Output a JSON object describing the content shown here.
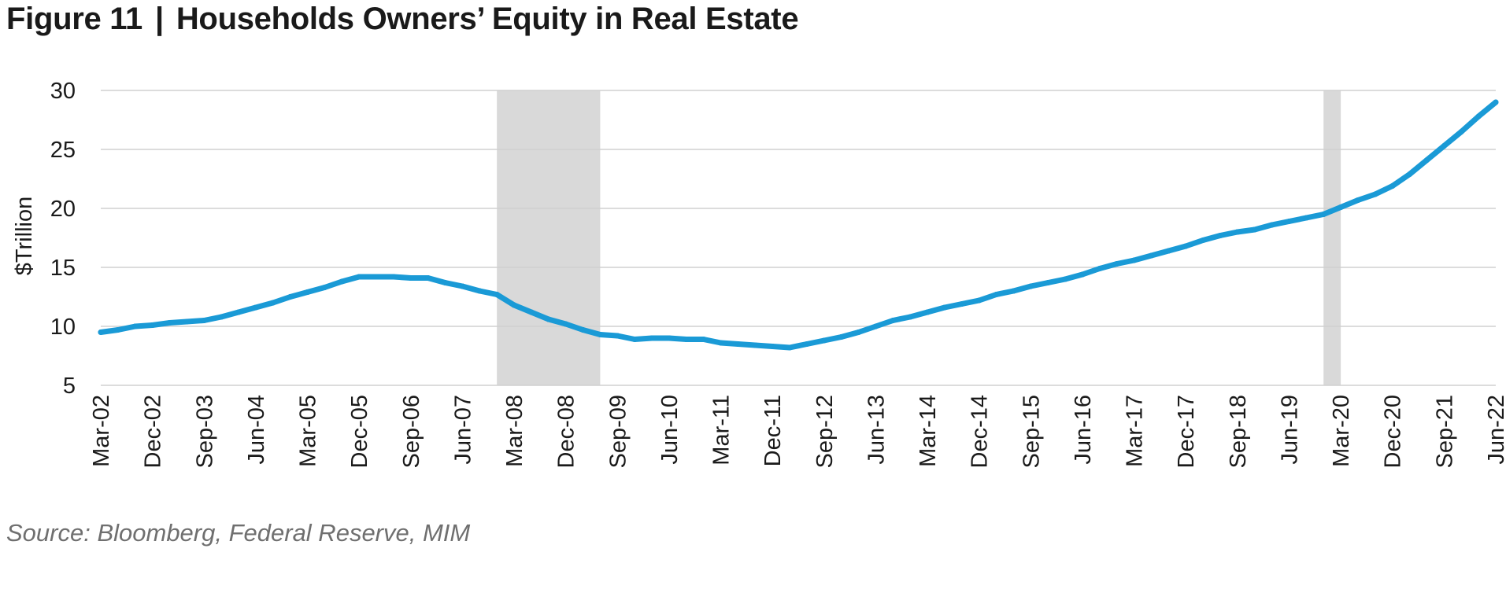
{
  "figure": {
    "label": "Figure 11",
    "separator": "|",
    "title": "Households Owners’ Equity in Real Estate",
    "source": "Source: Bloomberg, Federal Reserve, MIM"
  },
  "chart_data": {
    "type": "line",
    "title": "Households Owners’ Equity in Real Estate",
    "xlabel": "",
    "ylabel": "$Trillion",
    "ylim": [
      5,
      30
    ],
    "yticks": [
      5,
      10,
      15,
      20,
      25,
      30
    ],
    "grid": true,
    "legend": "none",
    "xtick_labels": [
      "Mar-02",
      "Dec-02",
      "Sep-03",
      "Jun-04",
      "Mar-05",
      "Dec-05",
      "Sep-06",
      "Jun-07",
      "Mar-08",
      "Dec-08",
      "Sep-09",
      "Jun-10",
      "Mar-11",
      "Dec-11",
      "Sep-12",
      "Jun-13",
      "Mar-14",
      "Dec-14",
      "Sep-15",
      "Jun-16",
      "Mar-17",
      "Dec-17",
      "Sep-18",
      "Jun-19",
      "Mar-20",
      "Dec-20",
      "Sep-21",
      "Jun-22"
    ],
    "shaded_periods": [
      {
        "start": "Dec-07",
        "end": "Jun-09"
      },
      {
        "start": "Dec-19",
        "end": "Mar-20"
      }
    ],
    "series": [
      {
        "color": "#1a9ad6",
        "x": [
          "Mar-02",
          "Jun-02",
          "Sep-02",
          "Dec-02",
          "Mar-03",
          "Jun-03",
          "Sep-03",
          "Dec-03",
          "Mar-04",
          "Jun-04",
          "Sep-04",
          "Dec-04",
          "Mar-05",
          "Jun-05",
          "Sep-05",
          "Dec-05",
          "Mar-06",
          "Jun-06",
          "Sep-06",
          "Dec-06",
          "Mar-07",
          "Jun-07",
          "Sep-07",
          "Dec-07",
          "Mar-08",
          "Jun-08",
          "Sep-08",
          "Dec-08",
          "Mar-09",
          "Jun-09",
          "Sep-09",
          "Dec-09",
          "Mar-10",
          "Jun-10",
          "Sep-10",
          "Dec-10",
          "Mar-11",
          "Jun-11",
          "Sep-11",
          "Dec-11",
          "Mar-12",
          "Jun-12",
          "Sep-12",
          "Dec-12",
          "Mar-13",
          "Jun-13",
          "Sep-13",
          "Dec-13",
          "Mar-14",
          "Jun-14",
          "Sep-14",
          "Dec-14",
          "Mar-15",
          "Jun-15",
          "Sep-15",
          "Dec-15",
          "Mar-16",
          "Jun-16",
          "Sep-16",
          "Dec-16",
          "Mar-17",
          "Jun-17",
          "Sep-17",
          "Dec-17",
          "Mar-18",
          "Jun-18",
          "Sep-18",
          "Dec-18",
          "Mar-19",
          "Jun-19",
          "Sep-19",
          "Dec-19",
          "Mar-20",
          "Jun-20",
          "Sep-20",
          "Dec-20",
          "Mar-21",
          "Jun-21",
          "Sep-21",
          "Dec-21",
          "Mar-22",
          "Jun-22"
        ],
        "values": [
          9.5,
          9.7,
          10.0,
          10.1,
          10.3,
          10.4,
          10.5,
          10.8,
          11.2,
          11.6,
          12.0,
          12.5,
          12.9,
          13.3,
          13.8,
          14.2,
          14.2,
          14.2,
          14.1,
          14.1,
          13.7,
          13.4,
          13.0,
          12.7,
          11.8,
          11.2,
          10.6,
          10.2,
          9.7,
          9.3,
          9.2,
          8.9,
          9.0,
          9.0,
          8.9,
          8.9,
          8.6,
          8.5,
          8.4,
          8.3,
          8.2,
          8.5,
          8.8,
          9.1,
          9.5,
          10.0,
          10.5,
          10.8,
          11.2,
          11.6,
          11.9,
          12.2,
          12.7,
          13.0,
          13.4,
          13.7,
          14.0,
          14.4,
          14.9,
          15.3,
          15.6,
          16.0,
          16.4,
          16.8,
          17.3,
          17.7,
          18.0,
          18.2,
          18.6,
          18.9,
          19.2,
          19.5,
          20.1,
          20.7,
          21.2,
          21.9,
          22.9,
          24.1,
          25.3,
          26.5,
          27.8,
          29.0
        ]
      }
    ]
  }
}
